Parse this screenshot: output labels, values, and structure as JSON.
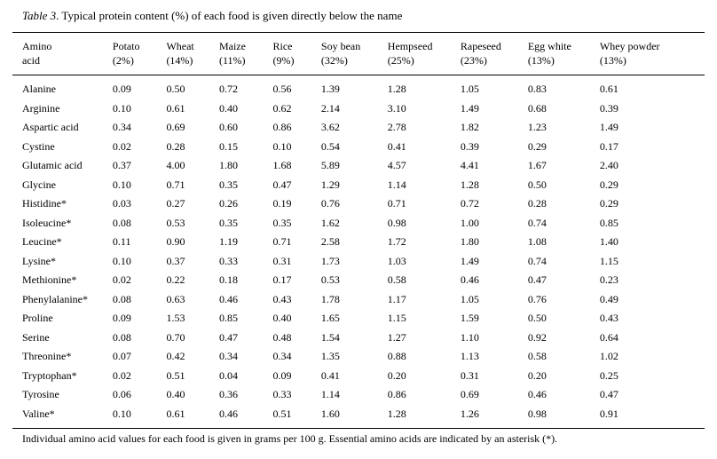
{
  "caption": {
    "label": "Table 3",
    "text": ". Typical protein content (%) of each food is given directly below the name"
  },
  "table": {
    "headers": [
      {
        "line1": "Amino",
        "line2": "acid"
      },
      {
        "line1": "Potato",
        "line2": "(2%)"
      },
      {
        "line1": "Wheat",
        "line2": "(14%)"
      },
      {
        "line1": "Maize",
        "line2": "(11%)"
      },
      {
        "line1": "Rice",
        "line2": "(9%)"
      },
      {
        "line1": "Soy bean",
        "line2": "(32%)"
      },
      {
        "line1": "Hempseed",
        "line2": "(25%)"
      },
      {
        "line1": "Rapeseed",
        "line2": "(23%)"
      },
      {
        "line1": "Egg white",
        "line2": "(13%)"
      },
      {
        "line1": "Whey powder",
        "line2": "(13%)"
      }
    ],
    "rows": [
      [
        "Alanine",
        "0.09",
        "0.50",
        "0.72",
        "0.56",
        "1.39",
        "1.28",
        "1.05",
        "0.83",
        "0.61"
      ],
      [
        "Arginine",
        "0.10",
        "0.61",
        "0.40",
        "0.62",
        "2.14",
        "3.10",
        "1.49",
        "0.68",
        "0.39"
      ],
      [
        "Aspartic acid",
        "0.34",
        "0.69",
        "0.60",
        "0.86",
        "3.62",
        "2.78",
        "1.82",
        "1.23",
        "1.49"
      ],
      [
        "Cystine",
        "0.02",
        "0.28",
        "0.15",
        "0.10",
        "0.54",
        "0.41",
        "0.39",
        "0.29",
        "0.17"
      ],
      [
        "Glutamic acid",
        "0.37",
        "4.00",
        "1.80",
        "1.68",
        "5.89",
        "4.57",
        "4.41",
        "1.67",
        "2.40"
      ],
      [
        "Glycine",
        "0.10",
        "0.71",
        "0.35",
        "0.47",
        "1.29",
        "1.14",
        "1.28",
        "0.50",
        "0.29"
      ],
      [
        "Histidine*",
        "0.03",
        "0.27",
        "0.26",
        "0.19",
        "0.76",
        "0.71",
        "0.72",
        "0.28",
        "0.29"
      ],
      [
        "Isoleucine*",
        "0.08",
        "0.53",
        "0.35",
        "0.35",
        "1.62",
        "0.98",
        "1.00",
        "0.74",
        "0.85"
      ],
      [
        "Leucine*",
        "0.11",
        "0.90",
        "1.19",
        "0.71",
        "2.58",
        "1.72",
        "1.80",
        "1.08",
        "1.40"
      ],
      [
        "Lysine*",
        "0.10",
        "0.37",
        "0.33",
        "0.31",
        "1.73",
        "1.03",
        "1.49",
        "0.74",
        "1.15"
      ],
      [
        "Methionine*",
        "0.02",
        "0.22",
        "0.18",
        "0.17",
        "0.53",
        "0.58",
        "0.46",
        "0.47",
        "0.23"
      ],
      [
        "Phenylalanine*",
        "0.08",
        "0.63",
        "0.46",
        "0.43",
        "1.78",
        "1.17",
        "1.05",
        "0.76",
        "0.49"
      ],
      [
        "Proline",
        "0.09",
        "1.53",
        "0.85",
        "0.40",
        "1.65",
        "1.15",
        "1.59",
        "0.50",
        "0.43"
      ],
      [
        "Serine",
        "0.08",
        "0.70",
        "0.47",
        "0.48",
        "1.54",
        "1.27",
        "1.10",
        "0.92",
        "0.64"
      ],
      [
        "Threonine*",
        "0.07",
        "0.42",
        "0.34",
        "0.34",
        "1.35",
        "0.88",
        "1.13",
        "0.58",
        "1.02"
      ],
      [
        "Tryptophan*",
        "0.02",
        "0.51",
        "0.04",
        "0.09",
        "0.41",
        "0.20",
        "0.31",
        "0.20",
        "0.25"
      ],
      [
        "Tyrosine",
        "0.06",
        "0.40",
        "0.36",
        "0.33",
        "1.14",
        "0.86",
        "0.69",
        "0.46",
        "0.47"
      ],
      [
        "Valine*",
        "0.10",
        "0.61",
        "0.46",
        "0.51",
        "1.60",
        "1.28",
        "1.26",
        "0.98",
        "0.91"
      ]
    ]
  },
  "footnote": "Individual amino acid values for each food is given in grams per 100 g. Essential amino acids are indicated by an asterisk (*)."
}
